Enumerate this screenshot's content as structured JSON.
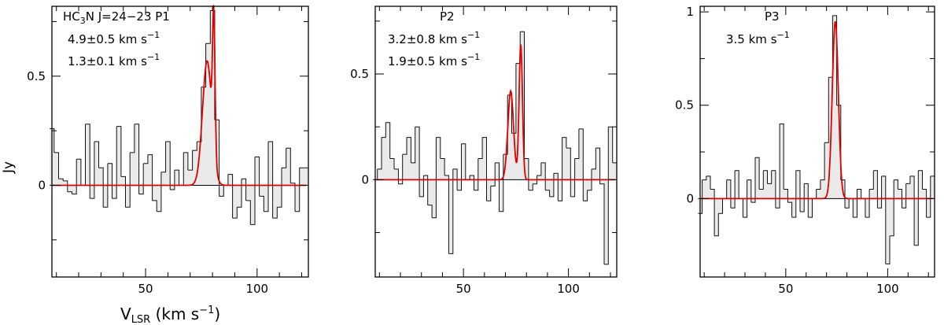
{
  "figure": {
    "xlabel_main": "V",
    "xlabel_sub": "LSR",
    "xlabel_unit": " (km s",
    "xlabel_exp": "−1",
    "xlabel_close": ")",
    "ylabel": "Jy",
    "colors": {
      "spectrum": "#111111",
      "fill": "#d9d9d9",
      "fit": "#e00000"
    }
  },
  "chart_data": [
    {
      "type": "histogram-line",
      "title_parts": {
        "a": "HC",
        "sub": "3",
        "b": "N  J=24−23  P1"
      },
      "annotations": [
        {
          "value": "4.9±0.5 km s",
          "exp": "−1"
        },
        {
          "value": "1.3±0.1 km s",
          "exp": "−1"
        }
      ],
      "xlim": [
        8,
        123
      ],
      "ylim": [
        -0.42,
        0.82
      ],
      "xticks": [
        50,
        100
      ],
      "xtick_labels": [
        "50",
        "100"
      ],
      "yticks": [
        0,
        0.5
      ],
      "ytick_labels": [
        "0",
        "0.5"
      ],
      "ytick_minor": [
        -0.25,
        0.25,
        0.75
      ],
      "x": [
        8,
        10,
        12,
        14,
        16,
        18,
        20,
        22,
        24,
        26,
        28,
        30,
        32,
        34,
        36,
        38,
        40,
        42,
        44,
        46,
        48,
        50,
        52,
        54,
        56,
        58,
        60,
        62,
        64,
        66,
        68,
        70,
        72,
        74,
        76,
        78,
        80,
        82,
        84,
        86,
        88,
        90,
        92,
        94,
        96,
        98,
        100,
        102,
        104,
        106,
        108,
        110,
        112,
        114,
        116,
        118,
        120,
        122
      ],
      "y": [
        0.26,
        0.15,
        0.03,
        0.02,
        -0.03,
        -0.04,
        0.12,
        0.0,
        0.28,
        -0.06,
        0.2,
        0.08,
        -0.1,
        0.1,
        -0.06,
        0.27,
        0.04,
        -0.1,
        0.15,
        0.28,
        -0.04,
        0.1,
        0.14,
        -0.07,
        -0.12,
        0.06,
        0.2,
        -0.02,
        0.07,
        0.0,
        0.15,
        0.07,
        0.16,
        0.2,
        0.45,
        0.65,
        0.8,
        0.3,
        -0.05,
        0.0,
        0.05,
        -0.15,
        -0.1,
        0.03,
        -0.07,
        -0.18,
        0.13,
        -0.05,
        -0.12,
        0.2,
        -0.15,
        -0.1,
        0.08,
        0.17,
        0.01,
        -0.12,
        0.08,
        0.08
      ],
      "fit": {
        "components": [
          {
            "amp": 0.57,
            "center": 77.6,
            "fwhm": 4.9
          },
          {
            "amp": 0.62,
            "center": 80.6,
            "fwhm": 1.3
          }
        ]
      }
    },
    {
      "type": "histogram-line",
      "title_parts": {
        "a": "P2",
        "sub": "",
        "b": ""
      },
      "annotations": [
        {
          "value": "3.2±0.8 km s",
          "exp": "−1"
        },
        {
          "value": "1.9±0.5 km s",
          "exp": "−1"
        }
      ],
      "xlim": [
        8,
        123
      ],
      "ylim": [
        -0.46,
        0.82
      ],
      "xticks": [
        50,
        100
      ],
      "xtick_labels": [
        "50",
        "100"
      ],
      "yticks": [
        0,
        0.5
      ],
      "ytick_labels": [
        "0",
        "0.5"
      ],
      "ytick_minor": [
        -0.25,
        0.25,
        0.75
      ],
      "x": [
        8,
        10,
        12,
        14,
        16,
        18,
        20,
        22,
        24,
        26,
        28,
        30,
        32,
        34,
        36,
        38,
        40,
        42,
        44,
        46,
        48,
        50,
        52,
        54,
        56,
        58,
        60,
        62,
        64,
        66,
        68,
        70,
        72,
        74,
        76,
        78,
        80,
        82,
        84,
        86,
        88,
        90,
        92,
        94,
        96,
        98,
        100,
        102,
        104,
        106,
        108,
        110,
        112,
        114,
        116,
        118,
        120,
        122
      ],
      "y": [
        0.0,
        0.05,
        0.2,
        0.27,
        0.1,
        0.05,
        -0.02,
        0.12,
        0.2,
        0.08,
        0.25,
        -0.08,
        0.02,
        -0.12,
        -0.18,
        0.2,
        0.1,
        0.02,
        -0.35,
        0.05,
        -0.05,
        0.17,
        0.0,
        0.02,
        -0.05,
        0.1,
        0.2,
        -0.1,
        -0.03,
        0.08,
        -0.15,
        0.12,
        0.4,
        0.22,
        0.55,
        0.7,
        0.1,
        -0.05,
        -0.02,
        0.02,
        0.08,
        -0.05,
        -0.08,
        0.03,
        -0.1,
        0.2,
        0.15,
        -0.08,
        0.1,
        0.24,
        -0.1,
        -0.05,
        0.05,
        0.15,
        -0.02,
        -0.4,
        0.25,
        0.08
      ],
      "fit": {
        "components": [
          {
            "amp": 0.42,
            "center": 72.5,
            "fwhm": 3.2
          },
          {
            "amp": 0.64,
            "center": 77.3,
            "fwhm": 1.9
          }
        ]
      }
    },
    {
      "type": "histogram-line",
      "title_parts": {
        "a": "P3",
        "sub": "",
        "b": ""
      },
      "annotations": [
        {
          "value": "3.5 km s",
          "exp": "−1"
        }
      ],
      "xlim": [
        8,
        123
      ],
      "ylim": [
        -0.42,
        1.03
      ],
      "xticks": [
        50,
        100
      ],
      "xtick_labels": [
        "50",
        "100"
      ],
      "yticks": [
        0,
        0.5,
        1
      ],
      "ytick_labels": [
        "0",
        "0.5",
        "1"
      ],
      "ytick_minor": [
        0.25,
        0.75
      ],
      "x": [
        8,
        10,
        12,
        14,
        16,
        18,
        20,
        22,
        24,
        26,
        28,
        30,
        32,
        34,
        36,
        38,
        40,
        42,
        44,
        46,
        48,
        50,
        52,
        54,
        56,
        58,
        60,
        62,
        64,
        66,
        68,
        70,
        72,
        74,
        76,
        78,
        80,
        82,
        84,
        86,
        88,
        90,
        92,
        94,
        96,
        98,
        100,
        102,
        104,
        106,
        108,
        110,
        112,
        114,
        116,
        118,
        120,
        122
      ],
      "y": [
        -0.08,
        0.1,
        0.12,
        0.05,
        -0.2,
        -0.08,
        0.0,
        0.1,
        -0.05,
        0.15,
        0.0,
        -0.1,
        0.1,
        -0.02,
        0.22,
        0.05,
        0.15,
        0.08,
        0.15,
        -0.05,
        0.4,
        0.05,
        -0.02,
        -0.1,
        0.15,
        -0.07,
        0.08,
        -0.1,
        0.0,
        0.05,
        0.1,
        0.3,
        0.65,
        0.98,
        0.5,
        0.1,
        -0.05,
        0.0,
        -0.1,
        0.05,
        0.0,
        -0.1,
        0.05,
        0.15,
        -0.05,
        0.12,
        -0.35,
        -0.2,
        0.1,
        0.05,
        -0.05,
        0.08,
        0.12,
        -0.25,
        0.15,
        0.05,
        -0.1,
        0.12
      ],
      "fit": {
        "components": [
          {
            "amp": 0.95,
            "center": 74.3,
            "fwhm": 3.5
          }
        ]
      }
    }
  ]
}
